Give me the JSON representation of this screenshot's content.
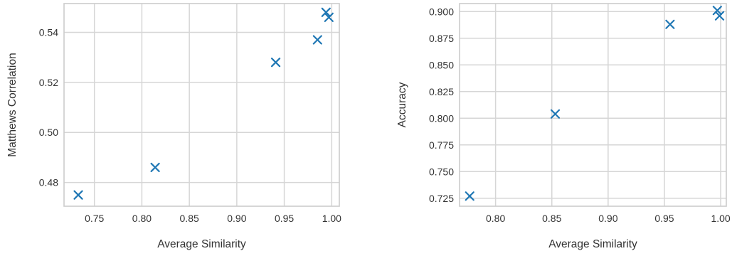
{
  "colors": {
    "marker": "#1f77b4",
    "grid": "#d6d6d6",
    "frame": "#cccccc",
    "text": "#333333"
  },
  "chart_data": [
    {
      "type": "scatter",
      "title": "",
      "xlabel": "Average Similarity",
      "ylabel": "Matthews Correlation",
      "xlim": [
        0.718,
        1.008
      ],
      "ylim": [
        0.4705,
        0.5515
      ],
      "xticks": [
        0.75,
        0.8,
        0.85,
        0.9,
        0.95,
        1.0
      ],
      "xtick_labels": [
        "0.75",
        "0.80",
        "0.85",
        "0.90",
        "0.95",
        "1.00"
      ],
      "yticks": [
        0.48,
        0.5,
        0.52,
        0.54
      ],
      "ytick_labels": [
        "0.48",
        "0.50",
        "0.52",
        "0.54"
      ],
      "grid": true,
      "marker": "x",
      "points": [
        {
          "x": 0.733,
          "y": 0.475
        },
        {
          "x": 0.814,
          "y": 0.486
        },
        {
          "x": 0.941,
          "y": 0.528
        },
        {
          "x": 0.985,
          "y": 0.537
        },
        {
          "x": 0.994,
          "y": 0.548
        },
        {
          "x": 0.997,
          "y": 0.546
        }
      ]
    },
    {
      "type": "scatter",
      "title": "",
      "xlabel": "Average Similarity",
      "ylabel": "Accuracy",
      "xlim": [
        0.768,
        1.005
      ],
      "ylim": [
        0.7175,
        0.9075
      ],
      "xticks": [
        0.8,
        0.85,
        0.9,
        0.95,
        1.0
      ],
      "xtick_labels": [
        "0.80",
        "0.85",
        "0.90",
        "0.95",
        "1.00"
      ],
      "yticks": [
        0.725,
        0.75,
        0.775,
        0.8,
        0.825,
        0.85,
        0.875,
        0.9
      ],
      "ytick_labels": [
        "0.725",
        "0.750",
        "0.775",
        "0.800",
        "0.825",
        "0.850",
        "0.875",
        "0.900"
      ],
      "grid": true,
      "marker": "x",
      "points": [
        {
          "x": 0.777,
          "y": 0.727
        },
        {
          "x": 0.853,
          "y": 0.804
        },
        {
          "x": 0.955,
          "y": 0.888
        },
        {
          "x": 0.997,
          "y": 0.901
        },
        {
          "x": 0.999,
          "y": 0.896
        }
      ]
    }
  ]
}
